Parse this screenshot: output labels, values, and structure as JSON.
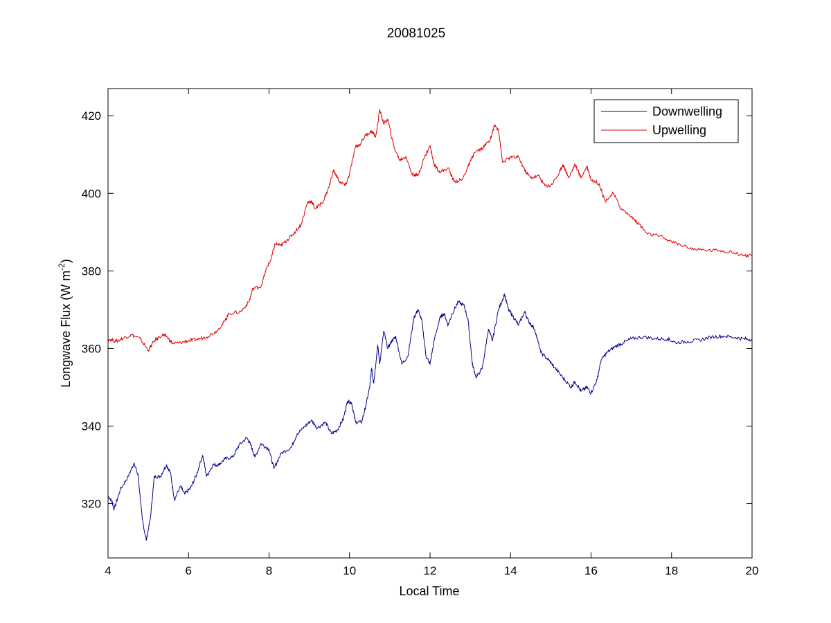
{
  "chart_data": {
    "type": "line",
    "title": "20081025",
    "xlabel": "Local Time",
    "ylabel": "Longwave Flux (W m",
    "ylabel_sup": "-2",
    "ylabel_end": ")",
    "xlim": [
      4,
      20
    ],
    "ylim": [
      306,
      427
    ],
    "xticks": [
      4,
      6,
      8,
      10,
      12,
      14,
      16,
      18,
      20
    ],
    "yticks": [
      320,
      340,
      360,
      380,
      400,
      420
    ],
    "grid": false,
    "legend": "top-right",
    "series": [
      {
        "name": "Downwelling",
        "color": "#00008b",
        "points": [
          [
            4.0,
            322
          ],
          [
            4.1,
            320.5
          ],
          [
            4.15,
            318.5
          ],
          [
            4.3,
            323.5
          ],
          [
            4.5,
            327
          ],
          [
            4.65,
            330.5
          ],
          [
            4.75,
            327
          ],
          [
            4.85,
            316
          ],
          [
            4.95,
            310.5
          ],
          [
            5.05,
            316
          ],
          [
            5.15,
            327
          ],
          [
            5.3,
            327
          ],
          [
            5.45,
            330
          ],
          [
            5.55,
            328
          ],
          [
            5.65,
            321
          ],
          [
            5.8,
            324.5
          ],
          [
            5.9,
            322.5
          ],
          [
            6.05,
            324
          ],
          [
            6.2,
            327.5
          ],
          [
            6.35,
            332.5
          ],
          [
            6.45,
            327
          ],
          [
            6.6,
            330
          ],
          [
            6.75,
            330
          ],
          [
            6.9,
            331.5
          ],
          [
            7.1,
            332
          ],
          [
            7.25,
            335
          ],
          [
            7.45,
            337
          ],
          [
            7.55,
            335
          ],
          [
            7.65,
            332
          ],
          [
            7.8,
            335.5
          ],
          [
            8.0,
            334
          ],
          [
            8.12,
            329
          ],
          [
            8.3,
            333
          ],
          [
            8.55,
            334.5
          ],
          [
            8.7,
            338
          ],
          [
            8.9,
            340
          ],
          [
            9.05,
            341.5
          ],
          [
            9.2,
            339.5
          ],
          [
            9.4,
            341
          ],
          [
            9.55,
            338
          ],
          [
            9.7,
            339
          ],
          [
            9.85,
            342
          ],
          [
            9.95,
            346.5
          ],
          [
            10.05,
            346
          ],
          [
            10.15,
            341
          ],
          [
            10.3,
            341
          ],
          [
            10.4,
            345
          ],
          [
            10.5,
            350
          ],
          [
            10.55,
            355
          ],
          [
            10.6,
            351
          ],
          [
            10.7,
            361
          ],
          [
            10.75,
            356
          ],
          [
            10.85,
            364.5
          ],
          [
            10.95,
            360
          ],
          [
            11.05,
            362
          ],
          [
            11.15,
            363
          ],
          [
            11.3,
            356
          ],
          [
            11.45,
            358
          ],
          [
            11.6,
            368
          ],
          [
            11.7,
            370
          ],
          [
            11.8,
            367
          ],
          [
            11.9,
            358
          ],
          [
            12.0,
            356
          ],
          [
            12.1,
            362
          ],
          [
            12.25,
            368
          ],
          [
            12.35,
            369
          ],
          [
            12.45,
            366
          ],
          [
            12.55,
            369
          ],
          [
            12.7,
            372
          ],
          [
            12.85,
            371
          ],
          [
            12.95,
            367
          ],
          [
            13.05,
            356
          ],
          [
            13.15,
            352.5
          ],
          [
            13.3,
            355
          ],
          [
            13.45,
            365
          ],
          [
            13.55,
            362
          ],
          [
            13.7,
            370
          ],
          [
            13.85,
            374
          ],
          [
            13.95,
            370
          ],
          [
            14.05,
            368.5
          ],
          [
            14.2,
            366
          ],
          [
            14.35,
            369.5
          ],
          [
            14.45,
            367
          ],
          [
            14.6,
            365
          ],
          [
            14.75,
            359
          ],
          [
            14.95,
            357
          ],
          [
            15.1,
            355
          ],
          [
            15.3,
            352.5
          ],
          [
            15.5,
            350
          ],
          [
            15.6,
            351.5
          ],
          [
            15.75,
            349
          ],
          [
            15.9,
            350
          ],
          [
            16.0,
            348.5
          ],
          [
            16.15,
            352
          ],
          [
            16.25,
            357
          ],
          [
            16.4,
            359
          ],
          [
            16.6,
            360.5
          ],
          [
            16.8,
            361.5
          ],
          [
            17.0,
            362.5
          ],
          [
            17.3,
            363
          ],
          [
            17.6,
            362.5
          ],
          [
            17.9,
            362.5
          ],
          [
            18.1,
            361.5
          ],
          [
            18.4,
            361.8
          ],
          [
            18.7,
            362.2
          ],
          [
            19.0,
            363
          ],
          [
            19.3,
            363.2
          ],
          [
            19.6,
            362.8
          ],
          [
            19.8,
            362.5
          ],
          [
            20.0,
            362.3
          ]
        ]
      },
      {
        "name": "Upwelling",
        "color": "#dd0000",
        "points": [
          [
            4.0,
            362.5
          ],
          [
            4.2,
            361.8
          ],
          [
            4.4,
            362.8
          ],
          [
            4.6,
            363.5
          ],
          [
            4.8,
            362.5
          ],
          [
            5.0,
            359.5
          ],
          [
            5.15,
            362
          ],
          [
            5.35,
            363.5
          ],
          [
            5.45,
            363.2
          ],
          [
            5.6,
            361.3
          ],
          [
            5.8,
            361.5
          ],
          [
            6.0,
            362
          ],
          [
            6.2,
            362.3
          ],
          [
            6.45,
            363
          ],
          [
            6.7,
            364.5
          ],
          [
            6.9,
            367
          ],
          [
            7.0,
            369
          ],
          [
            7.3,
            369.5
          ],
          [
            7.5,
            372
          ],
          [
            7.6,
            375.5
          ],
          [
            7.8,
            376
          ],
          [
            7.95,
            381
          ],
          [
            8.05,
            383
          ],
          [
            8.15,
            387
          ],
          [
            8.3,
            386.5
          ],
          [
            8.45,
            388
          ],
          [
            8.6,
            389.5
          ],
          [
            8.8,
            392
          ],
          [
            8.95,
            397.5
          ],
          [
            9.05,
            398
          ],
          [
            9.15,
            396
          ],
          [
            9.35,
            398
          ],
          [
            9.5,
            402
          ],
          [
            9.6,
            406
          ],
          [
            9.75,
            403
          ],
          [
            9.9,
            402
          ],
          [
            10.0,
            405
          ],
          [
            10.15,
            412
          ],
          [
            10.25,
            412.5
          ],
          [
            10.4,
            415
          ],
          [
            10.55,
            416
          ],
          [
            10.65,
            414.5
          ],
          [
            10.75,
            421.5
          ],
          [
            10.85,
            418
          ],
          [
            10.95,
            419
          ],
          [
            11.1,
            412
          ],
          [
            11.25,
            408.5
          ],
          [
            11.4,
            409.5
          ],
          [
            11.55,
            405
          ],
          [
            11.7,
            404.5
          ],
          [
            11.85,
            409
          ],
          [
            12.0,
            412.3
          ],
          [
            12.1,
            407.5
          ],
          [
            12.25,
            405.5
          ],
          [
            12.45,
            406.5
          ],
          [
            12.6,
            403
          ],
          [
            12.8,
            403.5
          ],
          [
            12.95,
            407
          ],
          [
            13.1,
            410.5
          ],
          [
            13.3,
            411.5
          ],
          [
            13.5,
            414
          ],
          [
            13.6,
            417.5
          ],
          [
            13.7,
            416.5
          ],
          [
            13.8,
            408
          ],
          [
            14.0,
            409.3
          ],
          [
            14.2,
            409.3
          ],
          [
            14.35,
            406
          ],
          [
            14.5,
            404
          ],
          [
            14.7,
            404.5
          ],
          [
            14.85,
            402
          ],
          [
            15.0,
            402
          ],
          [
            15.2,
            405
          ],
          [
            15.3,
            407.5
          ],
          [
            15.45,
            404
          ],
          [
            15.6,
            407.5
          ],
          [
            15.75,
            404
          ],
          [
            15.9,
            407
          ],
          [
            16.0,
            403.5
          ],
          [
            16.2,
            402.5
          ],
          [
            16.35,
            398
          ],
          [
            16.55,
            400
          ],
          [
            16.75,
            396
          ],
          [
            17.0,
            394
          ],
          [
            17.2,
            392
          ],
          [
            17.4,
            389.5
          ],
          [
            17.7,
            389
          ],
          [
            18.0,
            387.5
          ],
          [
            18.3,
            386.5
          ],
          [
            18.6,
            385.5
          ],
          [
            18.9,
            385.3
          ],
          [
            19.2,
            385.3
          ],
          [
            19.5,
            384.8
          ],
          [
            19.8,
            384
          ],
          [
            20.0,
            383.8
          ]
        ]
      }
    ]
  }
}
